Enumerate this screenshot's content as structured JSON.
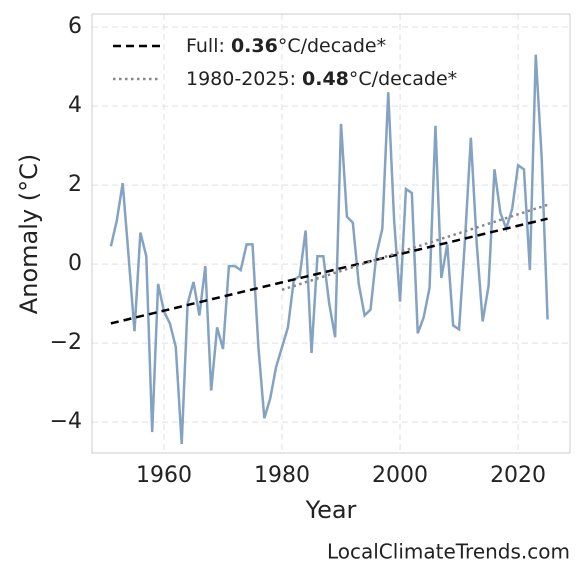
{
  "chart_data": {
    "type": "line",
    "xlabel": "Year",
    "ylabel": "Anomaly (°C)",
    "footer": "LocalClimateTrends.com",
    "x": [
      1951,
      1952,
      1953,
      1954,
      1955,
      1956,
      1957,
      1958,
      1959,
      1960,
      1961,
      1962,
      1963,
      1964,
      1965,
      1966,
      1967,
      1968,
      1969,
      1970,
      1971,
      1972,
      1973,
      1974,
      1975,
      1976,
      1977,
      1978,
      1979,
      1980,
      1981,
      1982,
      1983,
      1984,
      1985,
      1986,
      1987,
      1988,
      1989,
      1990,
      1991,
      1992,
      1993,
      1994,
      1995,
      1996,
      1997,
      1998,
      1999,
      2000,
      2001,
      2002,
      2003,
      2004,
      2005,
      2006,
      2007,
      2008,
      2009,
      2010,
      2011,
      2012,
      2013,
      2014,
      2015,
      2016,
      2017,
      2018,
      2019,
      2020,
      2021,
      2022,
      2023,
      2024,
      2025
    ],
    "series": [
      {
        "color": "#84a2c2",
        "values": [
          0.45,
          1.1,
          2.05,
          0.2,
          -1.7,
          0.8,
          0.2,
          -4.25,
          -0.5,
          -1.2,
          -1.5,
          -2.1,
          -4.55,
          -1.0,
          -0.45,
          -1.3,
          -0.05,
          -3.2,
          -1.6,
          -2.15,
          -0.05,
          -0.05,
          -0.15,
          0.5,
          0.5,
          -2.1,
          -3.9,
          -3.4,
          -2.6,
          -2.1,
          -1.6,
          -0.4,
          -0.3,
          0.85,
          -2.25,
          0.2,
          0.2,
          -1.0,
          -1.85,
          3.55,
          1.2,
          1.05,
          -0.5,
          -1.3,
          -1.15,
          0.25,
          0.9,
          4.35,
          1.1,
          -0.95,
          1.9,
          1.8,
          -1.75,
          -1.35,
          -0.6,
          3.5,
          -0.35,
          0.5,
          -1.55,
          -1.65,
          0.6,
          3.2,
          0.5,
          -1.45,
          -0.55,
          2.4,
          1.3,
          0.9,
          1.4,
          2.5,
          2.4,
          -0.15,
          5.3,
          2.7,
          -1.4
        ]
      }
    ],
    "trends": [
      {
        "name_parts": [
          "Full: ",
          "0.36",
          "°C/decade*"
        ],
        "color": "#000000",
        "style": "dashed",
        "x": [
          1951,
          2025
        ],
        "values": [
          -1.5,
          1.15
        ]
      },
      {
        "name_parts": [
          "1980-2025: ",
          "0.48",
          "°C/decade*"
        ],
        "color": "#888888",
        "style": "dotted",
        "x": [
          1980,
          2025
        ],
        "values": [
          -0.65,
          1.5
        ]
      }
    ],
    "xlim": [
      1947.8,
      2028.8
    ],
    "xticks": [
      1960,
      1980,
      2000,
      2020
    ],
    "ylim": [
      -4.78,
      6.33
    ],
    "yticks": [
      {
        "value": -4,
        "label": "−4"
      },
      {
        "value": -2,
        "label": "−2"
      },
      0,
      2,
      4,
      6
    ],
    "grid": true,
    "legend": "upper left"
  }
}
